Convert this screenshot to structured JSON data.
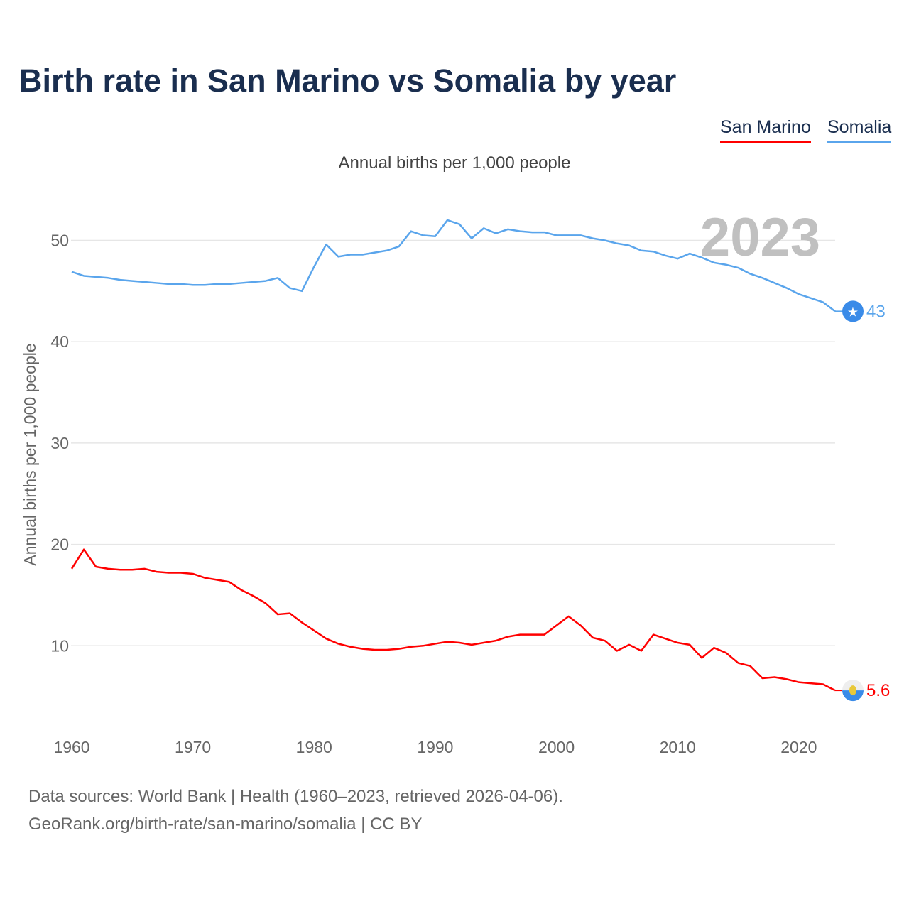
{
  "chart_data": {
    "type": "line",
    "title": "Birth rate in San Marino vs Somalia by year",
    "subtitle": "Annual births per 1,000 people",
    "ylabel": "Annual births per 1,000 people",
    "xlabel": "",
    "xlim": [
      1960,
      2023
    ],
    "ylim": [
      0,
      55
    ],
    "yticks": [
      10,
      20,
      30,
      40,
      50
    ],
    "xticks": [
      1960,
      1970,
      1980,
      1990,
      2000,
      2010,
      2020
    ],
    "grid": true,
    "legend_position": "top-right",
    "year_watermark": "2023",
    "x_start": 1960,
    "series": [
      {
        "name": "San Marino",
        "color": "#ff0000",
        "end_label": "5.6",
        "values": [
          17.6,
          19.5,
          17.8,
          17.6,
          17.5,
          17.5,
          17.6,
          17.3,
          17.2,
          17.2,
          17.1,
          16.7,
          16.5,
          16.3,
          15.5,
          14.9,
          14.2,
          13.1,
          13.2,
          12.3,
          11.5,
          10.7,
          10.2,
          9.9,
          9.7,
          9.6,
          9.6,
          9.7,
          9.9,
          10.0,
          10.2,
          10.4,
          10.3,
          10.1,
          10.3,
          10.5,
          10.9,
          11.1,
          11.1,
          11.1,
          12.0,
          12.9,
          12.0,
          10.8,
          10.5,
          9.5,
          10.1,
          9.5,
          11.1,
          10.7,
          10.3,
          10.1,
          8.8,
          9.8,
          9.3,
          8.3,
          8.0,
          6.8,
          6.9,
          6.7,
          6.4,
          6.3,
          6.2,
          5.6
        ]
      },
      {
        "name": "Somalia",
        "color": "#5aa5ec",
        "end_label": "43",
        "values": [
          46.9,
          46.5,
          46.4,
          46.3,
          46.1,
          46.0,
          45.9,
          45.8,
          45.7,
          45.7,
          45.6,
          45.6,
          45.7,
          45.7,
          45.8,
          45.9,
          46.0,
          46.3,
          45.3,
          45.0,
          47.4,
          49.6,
          48.4,
          48.6,
          48.6,
          48.8,
          49.0,
          49.4,
          50.9,
          50.5,
          50.4,
          52.0,
          51.6,
          50.2,
          51.2,
          50.7,
          51.1,
          50.9,
          50.8,
          50.8,
          50.5,
          50.5,
          50.5,
          50.2,
          50.0,
          49.7,
          49.5,
          49.0,
          48.9,
          48.5,
          48.2,
          48.7,
          48.3,
          47.8,
          47.6,
          47.3,
          46.7,
          46.3,
          45.8,
          45.3,
          44.7,
          44.3,
          43.9,
          43.0
        ]
      }
    ]
  },
  "footer": {
    "line1": "Data sources: World Bank | Health (1960–2023, retrieved 2026-04-06).",
    "line2": "GeoRank.org/birth-rate/san-marino/somalia | CC BY"
  }
}
